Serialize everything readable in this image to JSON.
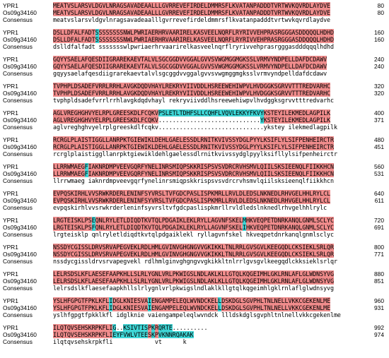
{
  "alignment": {
    "consensus_label": "Consensus",
    "colors": {
      "identical": "#f08c8c",
      "similar": "#3ed6d6",
      "text": "#000000"
    },
    "blocks": [
      {
        "a": {
          "name": "YPR1",
          "seq": "MEATVSLARSVLDGVLNRAGSAVADEAALLLGVRREVEFIRDELDMMRSFLKVATANPADDDTVRTWVKQVRDLAYDVE",
          "end": "80"
        },
        "b": {
          "name": "Os09g34160",
          "seq": "MEATVSLARSVLDGVLNRAGSAVADEAALLLGVRREVEFIRDELDMMRSFLKVATANPADDDTVRTWVKQVRDLAYDVE",
          "end": "80"
        },
        "cons": "meatvslarsvldgvlnragsavadeaalllgvrrevefirdeldmmrsflkvatanpadddtvrtwvkqvrdlaydve",
        "mask": "================================================================================"
      },
      {
        "a": {
          "name": "YPR1",
          "seq": "DSLLDFALFADTSSSSSSSSNWLPWRIAERHRVAARIRELKASVEELNQRFLRYRIVVEHPRASRGGGASDDQQQLHDHD",
          "end": "160"
        },
        "b": {
          "name": "Os09g34160",
          "seq": "DSLLDFALFADTSSSSSSSSNWLPWRIAERHRVAARIRELKASVEELNQRFLRYRIVVEHPRASRGGGASDDQQQLHDHD",
          "end": "160"
        },
        "cons": "dslldfalfadt ssssssswlpwriaerhrvaarirelkasveelnqrflryrivvehprasrgggasdddqqqlhdhd",
        "mask": "============~==================================================================="
      },
      {
        "a": {
          "name": "YPR1",
          "seq": "GQYYSAELAFQESDIIGRAREKAEVTALVLSGCGGDVVGGALGVVSVWGMGGMGKSSLVRMVYNDPELLDAFDCDAWV",
          "end": "240"
        },
        "b": {
          "name": "Os09g34160",
          "seq": "GQYYSAELAFQESDIIGRAREKAEVTALVLSGCGGDVVGGALGVVSVWGMGGMGKSSLVRMVYNDPELLDAFDCDAWV",
          "end": "240"
        },
        "cons": "gqyysaelafqesdiigrarekaevtalvlsgcggdvvggalgvvsvwgmggmgksslvrmvyndpelldafdcdawv",
        "mask": "=============================================================================="
      },
      {
        "a": {
          "name": "YPR1",
          "seq": "TVPHPLDSADEFVRRLRRHLAVGKDQDVHAYLREKRYVIIVDDLHSREEWEHIWPVLHVDGGKSGRVVTTTREDVARHC",
          "end": "320"
        },
        "b": {
          "name": "Os09g34160",
          "seq": "TVPHPLDSADEFVRRLRRHLAVGKDQDVHAYLREKRYVIIVDDLHSREEWEHIWPVLHVDGGKSGRVVTTTREDVARHC",
          "end": "320"
        },
        "cons": "tvphpldsadefvrrlrrhlavgkdqdvhayl rekryviivddlhsreewehiwpvlhvdggksgrvvtttredvarhc",
        "mask": "==============================================================================="
      },
      {
        "a": {
          "name": "YPR1",
          "seq": "AGLVREGHGHVYELRPLGREESKDLFCQKVPSLETLTDHFSLLCQHFLVQVLEKKYFKVYKSTEYILEKMEDLAGPILK",
          "end": "400"
        },
        "b": {
          "name": "Os09g34160",
          "seq": "AGLVREGHGHVYELRPLGREESKDLFCQKV.............................YKSTEYILEKMEDLAGPILK",
          "end": "371"
        },
        "cons": "aglvreghghvyelrplgreeskdlfcqkv..............................ykstey ilekmedlagpilk",
        "mask": "==============================~~~~~~~~~~~~~~~~~~~~~~~~~~~~~~====================="
      },
      {
        "a": {
          "name": "YPR1",
          "seq": "RCRGLPLAISTIGGLLANRPKTGIEWIKLDEHLGAELESSDLRNITKVIVSSYDGLPYYLKSIFLYLSIFPENHEIRCTR",
          "end": "480"
        },
        "b": {
          "name": "Os09g34160",
          "seq": "RCRGLPLAISTIGGLLANRPKTGIEWIKLDEHLGAELESSDLRNITKVIVSSYDGLPYYLKSIFLYLSIFPENHEIRCTR",
          "end": "451"
        },
        "cons": "rcrglplaistiggllanrpktgiewikldehlgaelessdlrnitkvivssydglpyylksifllylsifpenheirctr",
        "mask": "================================================================================"
      },
      {
        "a": {
          "name": "YPR1",
          "seq": "LLRRWMAEGFIAKNRDMPVEEVGQRFYNELINRSMIQPSKKRISPSVSVDRCRVHSMVLQIILSKSIEENQLFIIKKHCN",
          "end": "560"
        },
        "b": {
          "name": "Os09g34160",
          "seq": "LLRRWMAEGFIAKNRDMPVEEVGQRFYNELINRSMIQPSKKRISPSVSVDRCRVHSMVLQIILSKSIEENQLFIIKKHCN",
          "end": "531"
        },
        "cons": "llrrwmaeg iaknrdmpveevgqrfynelinrsmiqpskkrispsvsvdrcrvhsmvlqiilsksieenqlfiikkhcn",
        "mask": "=========~======================================================================"
      },
      {
        "a": {
          "name": "YPR1",
          "seq": "EVPQSKIRHLVVSRWKRDERLENINFSYVRSLTVFGDCPASLISPKMRLLRVLDLEDSLNKNEDLRHVGELHHLRYLCL",
          "end": "640"
        },
        "b": {
          "name": "Os09g34160",
          "seq": "EVPQSKIRHLVVSRWKRDERLENINFSYVRSLTVFGDCPASLISPKMRLLRVLDLEDSLNKNEDLRHVGELHHLRYLCL",
          "end": "611"
        },
        "cons": "evpqskirhlvvsrwkrderleninfsyvrsltvfgdcpaslispkmrllrvldledslnknedlrhvgelhhlrylc",
        "mask": "==============================================================================="
      },
      {
        "a": {
          "name": "YPR1",
          "seq": "LRGTEISKLPSEQNLRYLETLDIQDTKVTQLPDGAIKLEKLRYLLAGVNFSKELMHKVEQPETDNRKANQLGNMLSCLYC",
          "end": "720"
        },
        "b": {
          "name": "Os09g34160",
          "seq": "LRGTEISKLPSFQNLRYLETLDIQDTKVTQLPDGAIKLEKLRYLLAGVNFSKELIHKVEQPETDNRKANQLGNMLSCLYC",
          "end": "691"
        },
        "cons": "lrgteisklp qnlryletldiqdtkvtqlpdgaiklekl ryllagvnfskel hkveqpetdnrkanqlgnmlsclyc",
        "mask": "===========~==========================================~========================="
      },
      {
        "a": {
          "name": "YPR1",
          "seq": "NSSDYCGISSLDRVSRVAPEGVEKLRDLHMLGVINVGHGNGVVGKIKKLTNLRRLGVSGVLKEEGQDLCKSIEKLSRLQR",
          "end": "800"
        },
        "b": {
          "name": "Os09g34160",
          "seq": "NSSDYCGISSLDRVSRVAPEGVEKLRDLHMLGVINVGHGNGVVGKIKKLTNLRRLGVSGVLKEEGQDLCKSIEKLSRLQR",
          "end": "771"
        },
        "cons": "nssdycgissldrvsrvapegvekl rdlhmlginvghgngvvgkikkltnlrrlgvsgvlkeegqdlckksieklsrlqr",
        "mask": "================================================================================"
      },
      {
        "a": {
          "name": "YPR1",
          "seq": "LELRSDSLKFLAESEFAAPKHLLSLRLYGNLVRLPKWIGSLNDLAKLKLLGTQLKQGEIMHLGKLRNLAFLGLWDNSYVG",
          "end": "880"
        },
        "b": {
          "name": "Os09g34160",
          "seq": "LELRSDSLKFLAESEFAAPKHLLSLRLYGNLVRLPKWIGSLNDLAKLKLLGTQLKQGEIMHLGKLRNLAFLGLWDNSYVG",
          "end": "851"
        },
        "cons": "lelrsdslkflaesefaapkhllslrlygnlvrlpkwigslndlaklkllgtqlkqgeimhlgklrnlaflglwdnsyvg",
        "mask": "================================================================================"
      },
      {
        "a": {
          "name": "YPR1",
          "seq": "YSLHFGPGTFPKLKFLIDGLKNIESVAIENGAMPELEQLWVNDCKELLDSKDGLSGVPHLTNLNELLVKKCGEKENLME",
          "end": "960"
        },
        "b": {
          "name": "Os09g34160",
          "seq": "YSLHFGPGTFPKLKFLIDGLKNIESVAIENGAMPELEQLWVNDCKELLDSKDGLSGVPHLTNLNELLVKKCGEKENLME",
          "end": "931"
        },
        "cons": "yslhfgpgtfpkklkfl idglknie vaiengampeleqlwvndck llldskdglsgvphltnlnellvkkcgekenlme",
        "mask": "================~==========~===================~================================"
      },
      {
        "a": {
          "name": "YPR1",
          "seq": "ILQTQVSEHSKRPKFLIG..KSIVTISPKRQRTE..........",
          "end": "992"
        },
        "b": {
          "name": "Os09g34160",
          "seq": "ILQTQVSEHSKRPKFLIEYFVWLVTEESKPVKNNRQAKAK",
          "end": "974"
        },
        "cons": "ilqtqvsehskrpkfli            vt      k",
        "mask": "=================~~~~~~~~~~=~=~~~~~~~~~~~~~~~~"
      }
    ]
  }
}
